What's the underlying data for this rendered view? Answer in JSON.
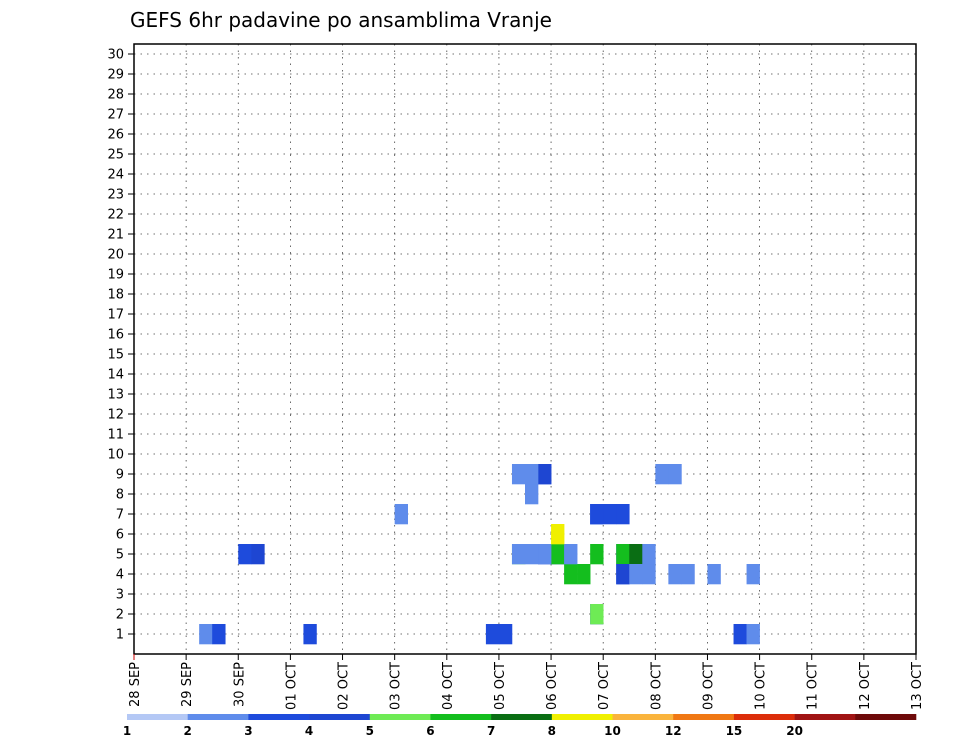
{
  "chart_data": {
    "type": "heatmap",
    "title": "GEFS 6hr padavine po ansamblima Vranje",
    "y_ticks": [
      "1",
      "2",
      "3",
      "4",
      "5",
      "6",
      "7",
      "8",
      "9",
      "10",
      "11",
      "12",
      "13",
      "14",
      "15",
      "16",
      "17",
      "18",
      "19",
      "20",
      "21",
      "22",
      "23",
      "24",
      "25",
      "26",
      "27",
      "28",
      "29",
      "30"
    ],
    "x_ticks": [
      "28 SEP",
      "29 SEP",
      "30 SEP",
      "01 OCT",
      "02 OCT",
      "03 OCT",
      "04 OCT",
      "05 OCT",
      "06 OCT",
      "07 OCT",
      "08 OCT",
      "09 OCT",
      "10 OCT",
      "11 OCT",
      "12 OCT",
      "13 OCT"
    ],
    "x_range_steps": [
      0,
      60
    ],
    "y_range": [
      0,
      30.5
    ],
    "grid": true,
    "colorbar": {
      "labels": [
        "1",
        "2",
        "3",
        "4",
        "5",
        "6",
        "7",
        "8",
        "10",
        "12",
        "15",
        "20"
      ],
      "colors": [
        "#b4c8f5",
        "#5f8ceb",
        "#1e4bdc",
        "#1e46d2",
        "#6eeb55",
        "#14be1e",
        "#0a6e14",
        "#f0f000",
        "#fab43c",
        "#f07814",
        "#dc2d0a",
        "#a01414",
        "#6e0a0a"
      ]
    },
    "cells": [
      [
        5,
        1,
        1
      ],
      [
        13,
        1,
        2
      ],
      [
        6,
        1,
        2
      ],
      [
        27,
        1,
        2
      ],
      [
        28,
        1,
        2
      ],
      [
        8,
        5,
        2
      ],
      [
        9,
        5,
        3
      ],
      [
        20,
        7,
        1
      ],
      [
        30,
        8,
        1
      ],
      [
        31,
        9,
        2
      ],
      [
        31,
        9,
        3
      ],
      [
        37,
        4,
        2
      ],
      [
        33,
        4,
        5
      ],
      [
        34,
        4,
        5
      ],
      [
        39,
        4,
        1
      ],
      [
        47,
        4,
        1
      ],
      [
        35,
        5,
        5
      ],
      [
        37,
        5,
        2
      ],
      [
        37,
        5,
        5
      ],
      [
        38,
        5,
        6
      ],
      [
        29,
        5,
        4
      ],
      [
        31,
        5,
        3
      ],
      [
        32,
        5,
        3
      ],
      [
        32,
        5,
        5
      ],
      [
        33,
        5,
        1
      ],
      [
        29,
        5,
        1
      ],
      [
        30,
        5,
        1
      ],
      [
        31,
        5,
        1
      ],
      [
        39,
        5,
        1
      ],
      [
        44,
        4,
        1
      ],
      [
        35,
        2,
        3
      ],
      [
        35,
        2,
        4
      ],
      [
        41,
        4,
        1
      ],
      [
        42,
        4,
        1
      ],
      [
        37,
        4,
        3
      ],
      [
        38,
        4,
        1
      ],
      [
        35,
        7,
        3
      ],
      [
        32,
        6,
        7
      ],
      [
        35,
        7,
        1
      ],
      [
        35,
        7,
        2
      ],
      [
        36,
        7,
        2
      ],
      [
        37,
        7,
        2
      ],
      [
        40,
        9,
        1
      ],
      [
        41,
        9,
        1
      ],
      [
        29,
        9,
        1
      ],
      [
        30,
        9,
        1
      ],
      [
        46,
        1,
        2
      ],
      [
        47,
        1,
        1
      ]
    ],
    "cells_note": ""
  }
}
